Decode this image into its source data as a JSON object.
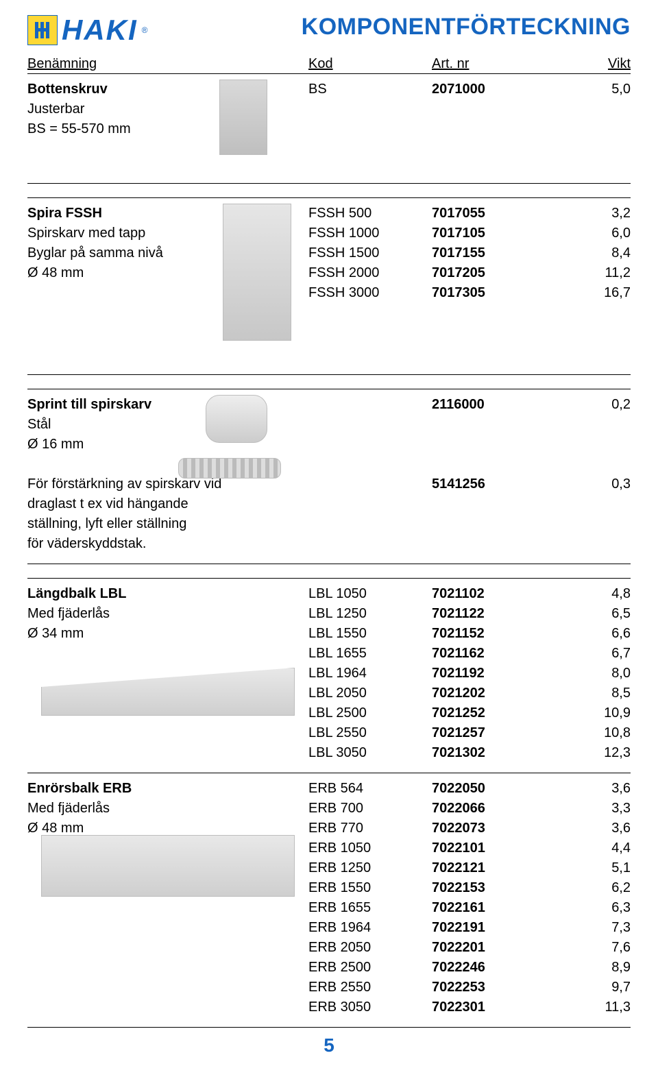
{
  "brand": {
    "name": "HAKI",
    "registered": "®"
  },
  "page_title": "KOMPONENTFÖRTECKNING",
  "colors": {
    "blue": "#1565c0",
    "yellow": "#fdd835",
    "text": "#000000",
    "bg": "#ffffff"
  },
  "columns": {
    "c1": "Benämning",
    "c2": "Kod",
    "c3": "Art. nr",
    "c4": "Vikt"
  },
  "page_number": "5",
  "sections": [
    {
      "id": "bottenskruv",
      "desc_lines": [
        {
          "text": "Bottenskruv",
          "bold": true,
          "kod": "BS",
          "art": "2071000",
          "vikt": "5,0"
        },
        {
          "text": "Justerbar"
        },
        {
          "text": "BS = 55-570 mm"
        }
      ],
      "illus": "jack"
    },
    {
      "id": "spira",
      "desc_lines": [
        {
          "text": "Spira FSSH",
          "bold": true,
          "kod": "FSSH 500",
          "art": "7017055",
          "vikt": "3,2"
        },
        {
          "text": "Spirskarv med tapp",
          "kod": "FSSH 1000",
          "art": "7017105",
          "vikt": "6,0"
        },
        {
          "text": "Byglar på samma nivå",
          "kod": "FSSH 1500",
          "art": "7017155",
          "vikt": "8,4"
        },
        {
          "text": "Ø 48 mm",
          "kod": "FSSH 2000",
          "art": "7017205",
          "vikt": "11,2"
        },
        {
          "text": "",
          "kod": "FSSH 3000",
          "art": "7017305",
          "vikt": "16,7"
        }
      ],
      "illus": "spira",
      "tall": true
    },
    {
      "id": "sprint",
      "desc_lines": [
        {
          "text": "Sprint till spirskarv",
          "bold": true,
          "art": "2116000",
          "vikt": "0,2"
        },
        {
          "text": "Stål"
        },
        {
          "text": "Ø 16 mm"
        },
        {
          "text": ""
        },
        {
          "text": "För förstärkning av spirskarv vid",
          "art": "5141256",
          "vikt": "0,3"
        },
        {
          "text": "draglast t ex vid hängande"
        },
        {
          "text": "ställning, lyft eller ställning"
        },
        {
          "text": "för väderskyddstak."
        }
      ],
      "illus": "clip_chain"
    },
    {
      "id": "lbl",
      "desc_lines": [
        {
          "text": "Längdbalk  LBL",
          "bold": true,
          "kod": "LBL 1050",
          "art": "7021102",
          "vikt": "4,8"
        },
        {
          "text": "Med fjäderlås",
          "kod": "LBL 1250",
          "art": "7021122",
          "vikt": "6,5"
        },
        {
          "text": "Ø 34 mm",
          "kod": "LBL 1550",
          "art": "7021152",
          "vikt": "6,6"
        },
        {
          "text": "",
          "kod": "LBL 1655",
          "art": "7021162",
          "vikt": "6,7"
        },
        {
          "text": "",
          "kod": "LBL 1964",
          "art": "7021192",
          "vikt": "8,0"
        },
        {
          "text": "",
          "kod": "LBL 2050",
          "art": "7021202",
          "vikt": "8,5"
        },
        {
          "text": "",
          "kod": "LBL 2500",
          "art": "7021252",
          "vikt": "10,9"
        },
        {
          "text": "",
          "kod": "LBL 2550",
          "art": "7021257",
          "vikt": "10,8"
        },
        {
          "text": "",
          "kod": "LBL 3050",
          "art": "7021302",
          "vikt": "12,3"
        }
      ],
      "illus": "lbl",
      "no_bottom_rule": true
    },
    {
      "id": "erb",
      "desc_lines": [
        {
          "text": "Enrörsbalk  ERB",
          "bold": true,
          "kod": "ERB  564",
          "art": "7022050",
          "vikt": "3,6"
        },
        {
          "text": "Med fjäderlås",
          "kod": "ERB  700",
          "art": "7022066",
          "vikt": "3,3"
        },
        {
          "text": "Ø 48 mm",
          "kod": "ERB  770",
          "art": "7022073",
          "vikt": "3,6"
        },
        {
          "text": "",
          "kod": "ERB 1050",
          "art": "7022101",
          "vikt": "4,4"
        },
        {
          "text": "",
          "kod": "ERB 1250",
          "art": "7022121",
          "vikt": "5,1"
        },
        {
          "text": "",
          "kod": "ERB 1550",
          "art": "7022153",
          "vikt": "6,2"
        },
        {
          "text": "",
          "kod": "ERB 1655",
          "art": "7022161",
          "vikt": "6,3"
        },
        {
          "text": "",
          "kod": "ERB 1964",
          "art": "7022191",
          "vikt": "7,3"
        },
        {
          "text": "",
          "kod": "ERB 2050",
          "art": "7022201",
          "vikt": "7,6"
        },
        {
          "text": "",
          "kod": "ERB 2500",
          "art": "7022246",
          "vikt": "8,9"
        },
        {
          "text": "",
          "kod": "ERB 2550",
          "art": "7022253",
          "vikt": "9,7"
        },
        {
          "text": "",
          "kod": "ERB 3050",
          "art": "7022301",
          "vikt": "11,3"
        }
      ],
      "illus": "erb"
    }
  ]
}
